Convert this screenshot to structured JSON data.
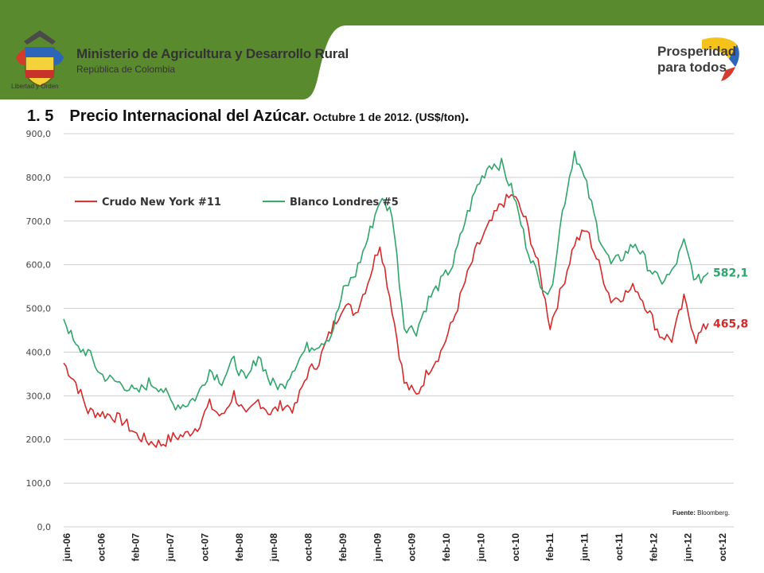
{
  "header": {
    "ministry_line1": "Ministerio de Agricultura y Desarrollo Rural",
    "ministry_line2": "República de Colombia",
    "motto": "Libertad y Orden",
    "logo_line1": "Prosperidad",
    "logo_line2": "para todos",
    "banner_color": "#5a8a2e"
  },
  "title": {
    "number": "1. 5",
    "main": "Precio Internacional del Azúcar.",
    "subtitle": "Octubre 1 de 2012. (US$/ton)",
    "trailing": "."
  },
  "source": {
    "label": "Fuente:",
    "value": "Bloomberg."
  },
  "chart_data": {
    "type": "line",
    "ylim": [
      0,
      900
    ],
    "yticks": [
      "0,0",
      "100,0",
      "200,0",
      "300,0",
      "400,0",
      "500,0",
      "600,0",
      "700,0",
      "800,0",
      "900,0"
    ],
    "x_labels": [
      "jun-06",
      "oct-06",
      "feb-07",
      "jun-07",
      "oct-07",
      "feb-08",
      "jun-08",
      "oct-08",
      "feb-09",
      "jun-09",
      "oct-09",
      "feb-10",
      "jun-10",
      "oct-10",
      "feb-11",
      "jun-11",
      "oct-11",
      "feb-12",
      "jun-12",
      "oct-12"
    ],
    "grid": true,
    "legend_position": "top-left",
    "series": [
      {
        "name": "Crudo New York #11",
        "color": "#d42a2a",
        "end_label": "465,8",
        "values": [
          375,
          330,
          265,
          260,
          255,
          240,
          210,
          195,
          190,
          205,
          210,
          230,
          280,
          250,
          305,
          250,
          290,
          260,
          280,
          270,
          350,
          380,
          450,
          510,
          490,
          560,
          650,
          500,
          330,
          300,
          360,
          400,
          470,
          560,
          640,
          690,
          740,
          760,
          700,
          600,
          460,
          550,
          650,
          680,
          600,
          520,
          530,
          550,
          500,
          440,
          430,
          520,
          430,
          465.8
        ]
      },
      {
        "name": "Blanco Londres #5",
        "color": "#2fa56a",
        "end_label": "582,1",
        "values": [
          480,
          410,
          400,
          350,
          335,
          325,
          305,
          330,
          320,
          280,
          280,
          300,
          360,
          335,
          380,
          330,
          395,
          330,
          320,
          370,
          410,
          420,
          440,
          540,
          580,
          660,
          750,
          720,
          460,
          450,
          520,
          560,
          600,
          700,
          780,
          830,
          830,
          760,
          650,
          570,
          530,
          720,
          860,
          780,
          670,
          600,
          620,
          650,
          600,
          560,
          580,
          650,
          560,
          582.1
        ]
      }
    ]
  }
}
